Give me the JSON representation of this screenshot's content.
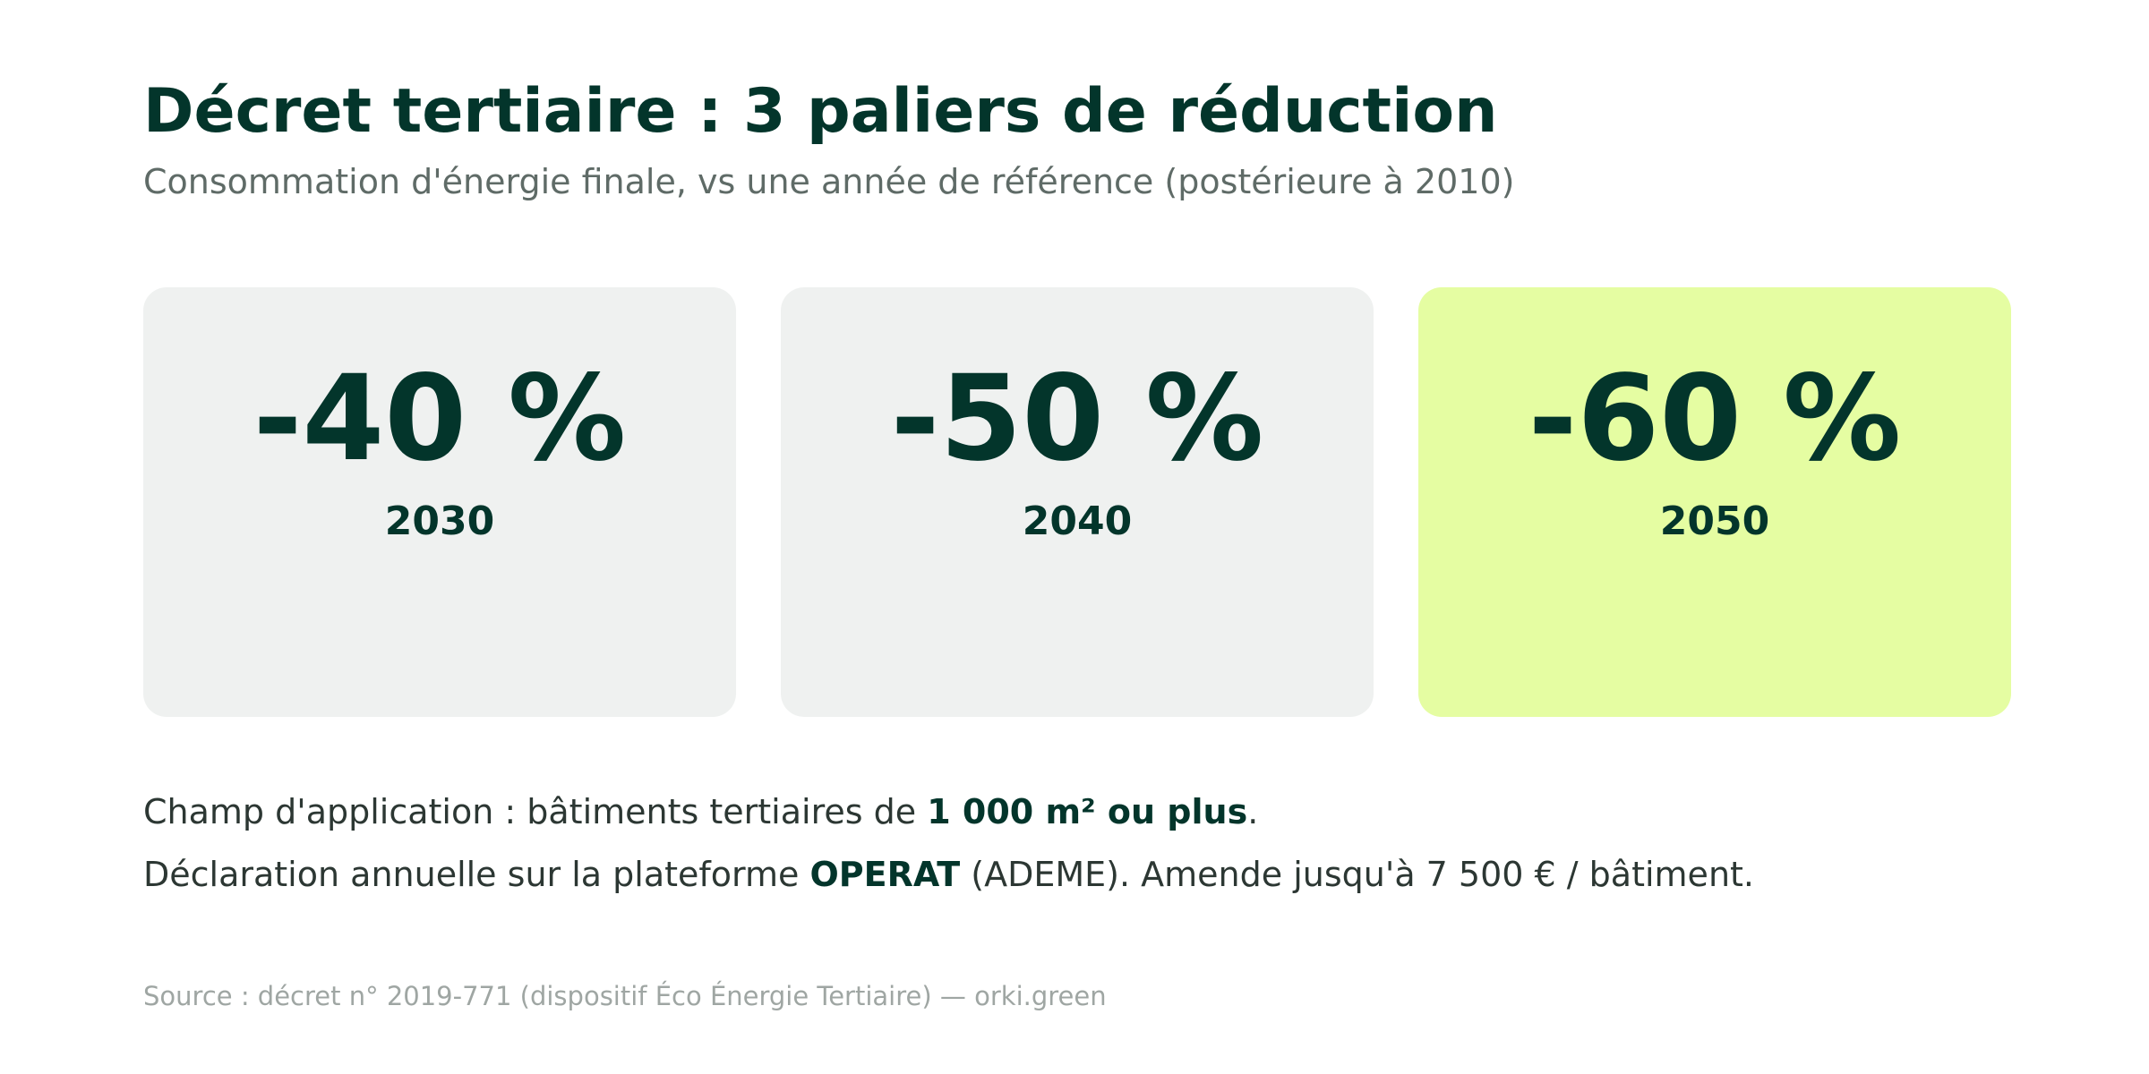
{
  "header": {
    "title": "Décret tertiaire : 3 paliers de réduction",
    "subtitle": "Consommation d'énergie finale, vs une année de référence (postérieure à 2010)"
  },
  "cards": [
    {
      "value": "-40 %",
      "year": "2030",
      "highlighted": false
    },
    {
      "value": "-50 %",
      "year": "2040",
      "highlighted": false
    },
    {
      "value": "-60 %",
      "year": "2050",
      "highlighted": true
    }
  ],
  "notes": {
    "line1": {
      "before": "Champ d'application : bâtiments tertiaires de ",
      "bold": "1 000 m² ou plus",
      "after": "."
    },
    "line2": {
      "before": "Déclaration annuelle sur la plateforme ",
      "bold": "OPERAT",
      "after": " (ADEME). Amende jusqu'à 7 500 € / bâtiment."
    }
  },
  "source": "Source : décret n° 2019-771 (dispositif Éco Énergie Tertiaire) — orki.green",
  "colors": {
    "heading": "#03352b",
    "card_default": "#eff1f0",
    "card_highlight": "#e5fda2",
    "subtitle": "#5f6b67",
    "body_text": "#2c3733",
    "source_text": "#9fa6a3"
  }
}
